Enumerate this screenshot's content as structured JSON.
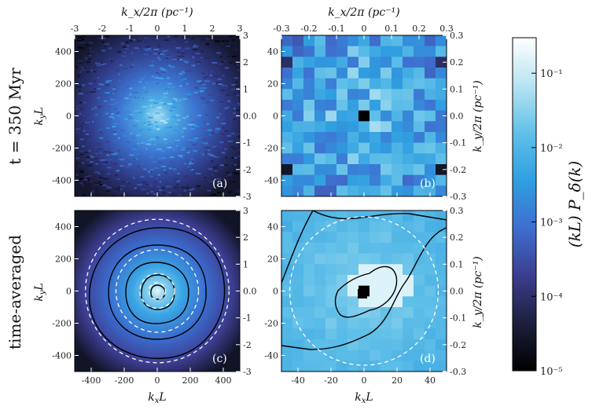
{
  "chart_data": {
    "type": "heatmap",
    "description_rows": [
      "t = 350 Myr",
      "time-averaged"
    ],
    "row_labels": [
      "t = 350 Myr",
      "time-averaged"
    ],
    "panels": [
      {
        "id": "a",
        "label": "(a)",
        "row": 0,
        "col": 0,
        "xlabel": "k_xL",
        "ylabel": "k_yL",
        "top_xlabel": "k_x/2π (pc⁻¹)",
        "right_ylabel": "",
        "xlim": [
          -500,
          500
        ],
        "ylim": [
          -500,
          500
        ],
        "xticks": [
          -400,
          -200,
          0,
          200,
          400
        ],
        "yticks": [
          -400,
          -200,
          0,
          200,
          400
        ],
        "top_ticks": [
          -3,
          -2,
          -1,
          0,
          1,
          2,
          3
        ],
        "right_ticks": [
          -3,
          -2,
          -1,
          0,
          1,
          2,
          3
        ],
        "show_xticklabels": false,
        "show_yticklabels": true,
        "show_top": true,
        "show_right": true
      },
      {
        "id": "b",
        "label": "(b)",
        "row": 0,
        "col": 1,
        "xlabel": "k_xL",
        "ylabel": "",
        "top_xlabel": "k_x/2π (pc⁻¹)",
        "right_ylabel": "k_y/2π (pc⁻¹)",
        "xlim": [
          -50,
          50
        ],
        "ylim": [
          -50,
          50
        ],
        "xticks": [
          -40,
          -20,
          0,
          20,
          40
        ],
        "yticks": [
          -40,
          -20,
          0,
          20,
          40
        ],
        "top_ticks": [
          -0.3,
          -0.2,
          -0.1,
          0.0,
          0.1,
          0.2,
          0.3
        ],
        "right_ticks": [
          -0.3,
          -0.2,
          -0.1,
          0.0,
          0.1,
          0.2,
          0.3
        ],
        "show_xticklabels": false,
        "show_yticklabels": true,
        "show_top": true,
        "show_right": true
      },
      {
        "id": "c",
        "label": "(c)",
        "row": 1,
        "col": 0,
        "xlabel": "k_xL",
        "ylabel": "k_yL",
        "top_xlabel": "",
        "right_ylabel": "",
        "xlim": [
          -500,
          500
        ],
        "ylim": [
          -500,
          500
        ],
        "xticks": [
          -400,
          -200,
          0,
          200,
          400
        ],
        "yticks": [
          -400,
          -200,
          0,
          200,
          400
        ],
        "top_ticks": [],
        "right_ticks": [
          -3,
          -2,
          -1,
          0,
          1,
          2,
          3
        ],
        "show_xticklabels": true,
        "show_yticklabels": true,
        "show_top": false,
        "show_right": true,
        "circle_radii": [
          435,
          250,
          105,
          50
        ]
      },
      {
        "id": "d",
        "label": "(d)",
        "row": 1,
        "col": 1,
        "xlabel": "k_xL",
        "ylabel": "",
        "top_xlabel": "",
        "right_ylabel": "k_y/2π (pc⁻¹)",
        "xlim": [
          -50,
          50
        ],
        "ylim": [
          -50,
          50
        ],
        "xticks": [
          -40,
          -20,
          0,
          20,
          40
        ],
        "yticks": [
          -40,
          -20,
          0,
          20,
          40
        ],
        "top_ticks": [],
        "right_ticks": [
          -0.3,
          -0.2,
          -0.1,
          0.0,
          0.1,
          0.2,
          0.3
        ],
        "show_xticklabels": true,
        "show_yticklabels": true,
        "show_top": false,
        "show_right": true,
        "circle_radii": [
          45
        ]
      }
    ],
    "colorbar": {
      "label": "(kL) P_δ(k)",
      "scale": "log",
      "range": [
        1e-05,
        0.3
      ],
      "ticks": [
        {
          "value": 0.1,
          "label": "10⁻¹"
        },
        {
          "value": 0.01,
          "label": "10⁻²"
        },
        {
          "value": 0.001,
          "label": "10⁻³"
        },
        {
          "value": 0.0001,
          "label": "10⁻⁴"
        },
        {
          "value": 1e-05,
          "label": "10⁻⁵"
        }
      ],
      "colormap": [
        "#000000",
        "#1c1f3a",
        "#3a3c8c",
        "#3f6fd0",
        "#2f9ee0",
        "#5fbfe8",
        "#b8e4f2",
        "#ffffff"
      ]
    }
  },
  "text": {
    "row_a": "t = 350 Myr",
    "row_b": "time-averaged",
    "kxL": "k",
    "kxL_sub": "x",
    "L": "L",
    "kyL_sub": "y",
    "top_label": "k_x/2π (pc⁻¹)",
    "right_label": "k_y/2π (pc⁻¹)",
    "cb_label": "(kL) P_δ(k)"
  }
}
